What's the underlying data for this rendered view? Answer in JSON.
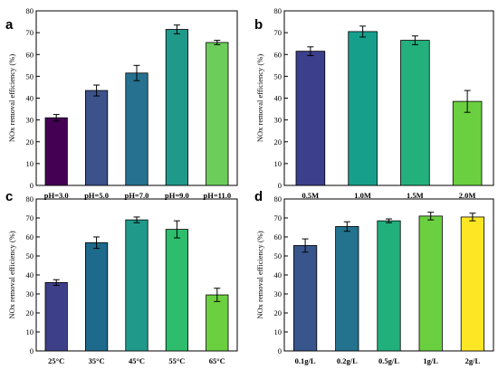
{
  "chart_data": [
    {
      "panel": "a",
      "type": "bar",
      "categories": [
        "pH=3.0",
        "pH=5.0",
        "pH=7.0",
        "pH=9.0",
        "pH=11.0"
      ],
      "values": [
        31,
        43.5,
        51.5,
        71.5,
        65.5
      ],
      "errors": [
        1.5,
        2.5,
        3.5,
        2,
        1
      ],
      "colors": [
        "#440154",
        "#3b528b",
        "#26718f",
        "#1f9a8a",
        "#6ccd5a"
      ],
      "title": "",
      "xlabel": "",
      "ylabel": "NOx removal efficiency (%)",
      "ylim": [
        0,
        80
      ],
      "yticks": [
        0,
        10,
        20,
        30,
        40,
        50,
        60,
        70,
        80
      ]
    },
    {
      "panel": "b",
      "type": "bar",
      "categories": [
        "0.5M",
        "1.0M",
        "1.5M",
        "2.0M"
      ],
      "values": [
        61.5,
        70.5,
        66.5,
        38.5
      ],
      "errors": [
        2,
        2.5,
        2,
        5
      ],
      "colors": [
        "#3c3f8c",
        "#16a08c",
        "#23b07c",
        "#6bd03f"
      ],
      "title": "",
      "xlabel": "",
      "ylabel": "NOx removal efficiency (%)",
      "ylim": [
        0,
        80
      ],
      "yticks": [
        0,
        10,
        20,
        30,
        40,
        50,
        60,
        70,
        80
      ]
    },
    {
      "panel": "c",
      "type": "bar",
      "categories": [
        "25°C",
        "35°C",
        "45°C",
        "55°C",
        "65°C"
      ],
      "values": [
        36,
        57,
        69,
        64,
        29.5
      ],
      "errors": [
        1.5,
        3,
        1.5,
        4.5,
        3.5
      ],
      "colors": [
        "#3d3f88",
        "#1e6a8c",
        "#1f9a8a",
        "#2dbd6c",
        "#6bd03f"
      ],
      "title": "",
      "xlabel": "",
      "ylabel": "NOx removal efficiency (%)",
      "ylim": [
        0,
        80
      ],
      "yticks": [
        0,
        10,
        20,
        30,
        40,
        50,
        60,
        70,
        80
      ]
    },
    {
      "panel": "d",
      "type": "bar",
      "categories": [
        "0.1g/L",
        "0.2g/L",
        "0.5g/L",
        "1g/L",
        "2g/L"
      ],
      "values": [
        55.5,
        65.5,
        68.5,
        71,
        70.5
      ],
      "errors": [
        3.5,
        2.5,
        1,
        2,
        2
      ],
      "colors": [
        "#39568c",
        "#23728e",
        "#21b07c",
        "#6bd03f",
        "#fde725"
      ],
      "title": "",
      "xlabel": "",
      "ylabel": "NOx removal efficiency (%)",
      "ylim": [
        0,
        80
      ],
      "yticks": [
        0,
        10,
        20,
        30,
        40,
        50,
        60,
        70,
        80
      ]
    }
  ]
}
